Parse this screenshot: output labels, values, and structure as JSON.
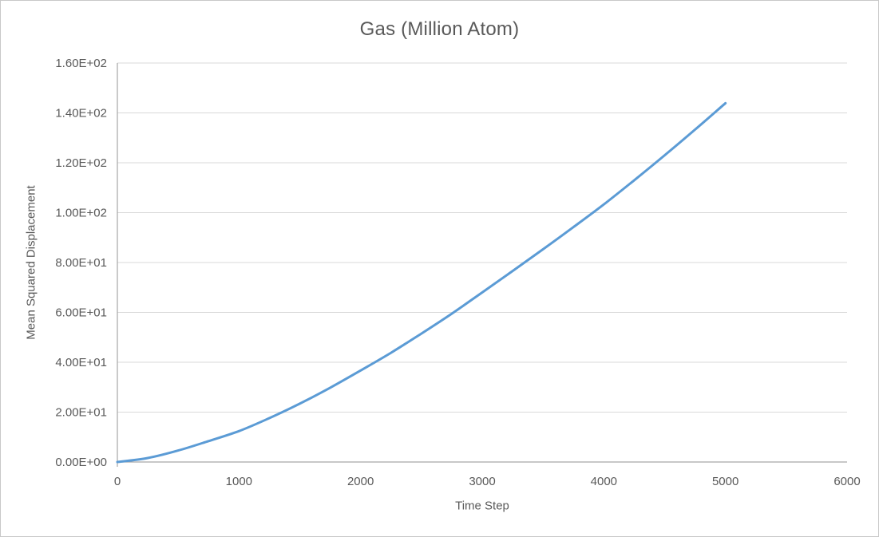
{
  "chart_data": {
    "type": "line",
    "title": "Gas (Million Atom)",
    "xlabel": "Time Step",
    "ylabel": "Mean Squared Displacement",
    "xlim": [
      0,
      6000
    ],
    "ylim": [
      0,
      160
    ],
    "grid": "horizontal-major-only",
    "legend": "none",
    "x_ticks": [
      0,
      1000,
      2000,
      3000,
      4000,
      5000,
      6000
    ],
    "x_tick_labels": [
      "0",
      "1000",
      "2000",
      "3000",
      "4000",
      "5000",
      "6000"
    ],
    "y_ticks": [
      0,
      20,
      40,
      60,
      80,
      100,
      120,
      140,
      160
    ],
    "y_tick_labels": [
      "0.00E+00",
      "2.00E+01",
      "4.00E+01",
      "6.00E+01",
      "8.00E+01",
      "1.00E+02",
      "1.20E+02",
      "1.40E+02",
      "1.60E+02"
    ],
    "series": [
      {
        "name": "Mean Squared Displacement",
        "x": [
          0,
          250,
          500,
          750,
          1000,
          1250,
          1500,
          1750,
          2000,
          2250,
          2500,
          2750,
          3000,
          3250,
          3500,
          3750,
          4000,
          4250,
          4500,
          4750,
          5000
        ],
        "y": [
          0,
          1.6,
          4.6,
          8.4,
          12.4,
          17.6,
          23.4,
          29.8,
          36.7,
          43.8,
          51.5,
          59.5,
          68.0,
          76.6,
          85.3,
          94.2,
          103.3,
          113.0,
          123.0,
          133.3,
          143.9
        ]
      }
    ],
    "colors": {
      "line": "#5B9BD5",
      "gridline": "#D9D9D9",
      "axis": "#A6A6A6",
      "text": "#595959",
      "background": "#FFFFFF"
    }
  }
}
